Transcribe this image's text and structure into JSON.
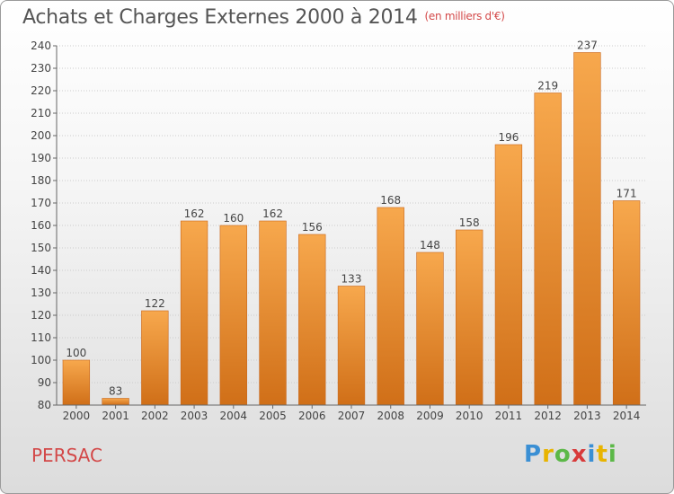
{
  "header": {
    "title": "Achats et Charges Externes 2000 à 2014",
    "unit": "(en milliers d'€)"
  },
  "footer": {
    "commune": "PERSAC",
    "logo_letters": [
      "P",
      "r",
      "o",
      "x",
      "i",
      "t",
      "i"
    ],
    "logo_colors": [
      "#3a8fd4",
      "#e8b400",
      "#5cb848",
      "#d83a3a",
      "#3a8fd4",
      "#e8b400",
      "#5cb848"
    ]
  },
  "colors": {
    "bar_top": "#f7a84d",
    "bar_bottom": "#d06f18",
    "grid": "#cccccc",
    "axis": "#666666",
    "title_unit": "#d34848"
  },
  "chart_data": {
    "type": "bar",
    "title": "Achats et Charges Externes 2000 à 2014",
    "xlabel": "",
    "ylabel": "",
    "categories": [
      "2000",
      "2001",
      "2002",
      "2003",
      "2004",
      "2005",
      "2006",
      "2007",
      "2008",
      "2009",
      "2010",
      "2011",
      "2012",
      "2013",
      "2014"
    ],
    "values": [
      100,
      83,
      122,
      162,
      160,
      162,
      156,
      133,
      168,
      148,
      158,
      196,
      219,
      237,
      171
    ],
    "ylim": [
      80,
      240
    ],
    "yticks": [
      80,
      90,
      100,
      110,
      120,
      130,
      140,
      150,
      160,
      170,
      180,
      190,
      200,
      210,
      220,
      230,
      240
    ],
    "grid": true,
    "data_labels": true
  }
}
